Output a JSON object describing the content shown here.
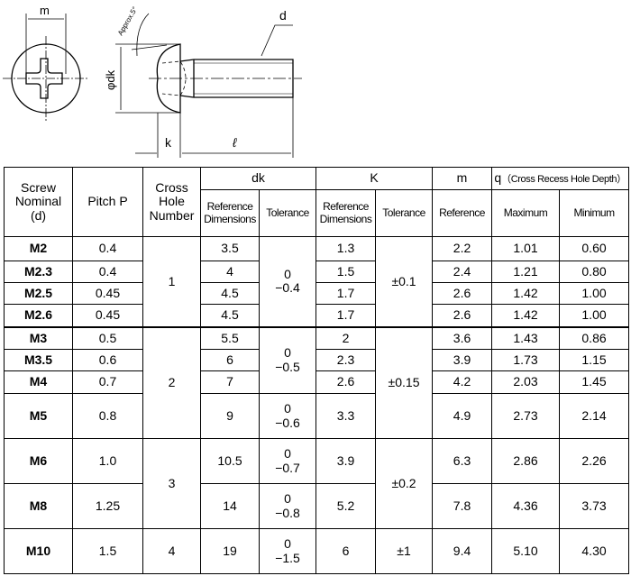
{
  "drawing": {
    "labels": {
      "m": "m",
      "dk": "φdk",
      "d": "d",
      "k": "k",
      "l": "ℓ",
      "angle": "Approx.5°"
    }
  },
  "table": {
    "headers": {
      "nominal": [
        "Screw",
        "Nominal",
        "(d)"
      ],
      "pitch": "Pitch P",
      "cross": [
        "Cross",
        "Hole",
        "Number"
      ],
      "dk": "dk",
      "K": "K",
      "m": "m",
      "q": "q",
      "q_note": "（Cross Recess Hole Depth）",
      "ref_dim": [
        "Reference",
        "Dimensions"
      ],
      "tolerance": "Tolerance",
      "reference": "Reference",
      "maximum": "Maximum",
      "minimum": "Minimum"
    },
    "rows": [
      {
        "nominal": "M2",
        "pitch": "0.4",
        "dk": "3.5",
        "k": "1.3",
        "m": "2.2",
        "qmax": "1.01",
        "qmin": "0.60"
      },
      {
        "nominal": "M2.3",
        "pitch": "0.4",
        "dk": "4",
        "k": "1.5",
        "m": "2.4",
        "qmax": "1.21",
        "qmin": "0.80"
      },
      {
        "nominal": "M2.5",
        "pitch": "0.45",
        "dk": "4.5",
        "k": "1.7",
        "m": "2.6",
        "qmax": "1.42",
        "qmin": "1.00"
      },
      {
        "nominal": "M2.6",
        "pitch": "0.45",
        "dk": "4.5",
        "k": "1.7",
        "m": "2.6",
        "qmax": "1.42",
        "qmin": "1.00"
      },
      {
        "nominal": "M3",
        "pitch": "0.5",
        "dk": "5.5",
        "k": "2",
        "m": "3.6",
        "qmax": "1.43",
        "qmin": "0.86"
      },
      {
        "nominal": "M3.5",
        "pitch": "0.6",
        "dk": "6",
        "k": "2.3",
        "m": "3.9",
        "qmax": "1.73",
        "qmin": "1.15"
      },
      {
        "nominal": "M4",
        "pitch": "0.7",
        "dk": "7",
        "k": "2.6",
        "m": "4.2",
        "qmax": "2.03",
        "qmin": "1.45"
      },
      {
        "nominal": "M5",
        "pitch": "0.8",
        "dk": "9",
        "k": "3.3",
        "m": "4.9",
        "qmax": "2.73",
        "qmin": "2.14"
      },
      {
        "nominal": "M6",
        "pitch": "1.0",
        "dk": "10.5",
        "k": "3.9",
        "m": "6.3",
        "qmax": "2.86",
        "qmin": "2.26"
      },
      {
        "nominal": "M8",
        "pitch": "1.25",
        "dk": "14",
        "k": "5.2",
        "m": "7.8",
        "qmax": "4.36",
        "qmin": "3.73"
      },
      {
        "nominal": "M10",
        "pitch": "1.5",
        "dk": "19",
        "k": "6",
        "m": "9.4",
        "qmax": "5.10",
        "qmin": "4.30"
      }
    ],
    "cross_groups": [
      "1",
      "2",
      "3",
      "4"
    ],
    "dk_tol": [
      [
        "0",
        "−0.4"
      ],
      [
        "0",
        "−0.5"
      ],
      [
        "0",
        "−0.6"
      ],
      [
        "0",
        "−0.7"
      ],
      [
        "0",
        "−0.8"
      ],
      [
        "0",
        "−1.5"
      ]
    ],
    "k_tol": [
      "±0.1",
      "±0.15",
      "±0.2",
      "±1"
    ]
  }
}
